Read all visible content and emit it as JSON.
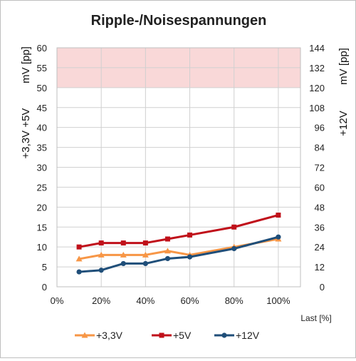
{
  "chart_data": {
    "type": "line",
    "title": "Ripple-/Noisespannungen",
    "xlabel": "Last [%]",
    "ylabel_left_unit": "mV [pp]",
    "ylabel_left_rails": "+3,3V +5V",
    "ylabel_right_unit": "mV [pp]",
    "ylabel_right_rail": "+12V",
    "x_ticks": [
      "0%",
      "20%",
      "40%",
      "60%",
      "80%",
      "100%"
    ],
    "xlim": [
      0,
      110
    ],
    "ylim_left": [
      0,
      60
    ],
    "ylim_right": [
      0,
      144
    ],
    "y_ticks_left": [
      "0",
      "5",
      "10",
      "15",
      "20",
      "25",
      "30",
      "35",
      "40",
      "45",
      "50",
      "55",
      "60"
    ],
    "y_ticks_right": [
      "0",
      "12",
      "24",
      "36",
      "48",
      "60",
      "72",
      "84",
      "96",
      "108",
      "120",
      "132",
      "144"
    ],
    "limit_band_left": [
      50,
      60
    ],
    "grid": true,
    "legend_position": "bottom",
    "series": [
      {
        "name": "+3,3V",
        "axis": "left",
        "color": "#f79646",
        "marker": "triangle",
        "x": [
          10,
          20,
          30,
          40,
          50,
          60,
          80,
          100
        ],
        "values": [
          7,
          8,
          8,
          8,
          9,
          8,
          10,
          12
        ]
      },
      {
        "name": "+5V",
        "axis": "left",
        "color": "#c0101a",
        "marker": "square",
        "x": [
          10,
          20,
          30,
          40,
          50,
          60,
          80,
          100
        ],
        "values": [
          10,
          11,
          11,
          11,
          12,
          13,
          15,
          18
        ]
      },
      {
        "name": "+12V",
        "axis": "right",
        "color": "#1f4e79",
        "marker": "circle",
        "x": [
          10,
          20,
          30,
          40,
          50,
          60,
          80,
          100
        ],
        "values": [
          9,
          10,
          14,
          14,
          17,
          18,
          23,
          30
        ]
      }
    ],
    "band_color": "#f9d8d8",
    "grid_color": "#d0d0d0"
  }
}
